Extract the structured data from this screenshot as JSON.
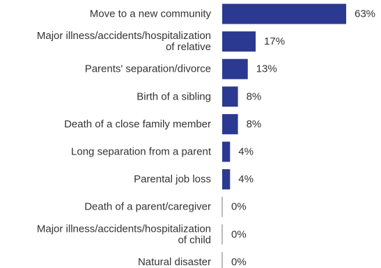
{
  "chart_data": {
    "type": "bar",
    "orientation": "horizontal",
    "categories": [
      [
        "Move to a new community"
      ],
      [
        "Major illness/accidents/hospitalization",
        "of relative"
      ],
      [
        "Parents' separation/divorce"
      ],
      [
        "Birth of a sibling"
      ],
      [
        "Death of a close family member"
      ],
      [
        "Long separation from a parent"
      ],
      [
        "Parental job loss"
      ],
      [
        "Death of a parent/caregiver"
      ],
      [
        "Major illness/accidents/hospitalization",
        "of child"
      ],
      [
        "Natural disaster"
      ]
    ],
    "values": [
      63,
      17,
      13,
      8,
      8,
      4,
      4,
      0,
      0,
      0
    ],
    "value_labels": [
      "63%",
      "17%",
      "13%",
      "8%",
      "8%",
      "4%",
      "4%",
      "0%",
      "0%",
      "0%"
    ],
    "unit": "%",
    "bar_color": "#2b3990",
    "axis_color": "#777777",
    "xlim": [
      0,
      63
    ],
    "grid": false,
    "legend": "none"
  }
}
